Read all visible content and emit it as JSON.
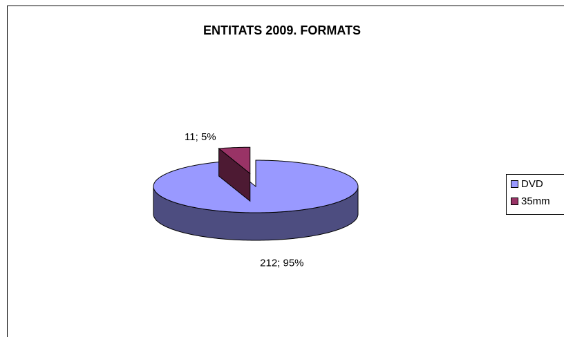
{
  "chart_data": {
    "type": "pie",
    "title": "ENTITATS 2009. FORMATS",
    "categories": [
      "DVD",
      "35mm"
    ],
    "values": [
      212,
      11
    ],
    "value_labels": [
      "212; 95%",
      "11; 5%"
    ],
    "colors": [
      "#9999ff",
      "#993366"
    ],
    "legend": "right"
  }
}
